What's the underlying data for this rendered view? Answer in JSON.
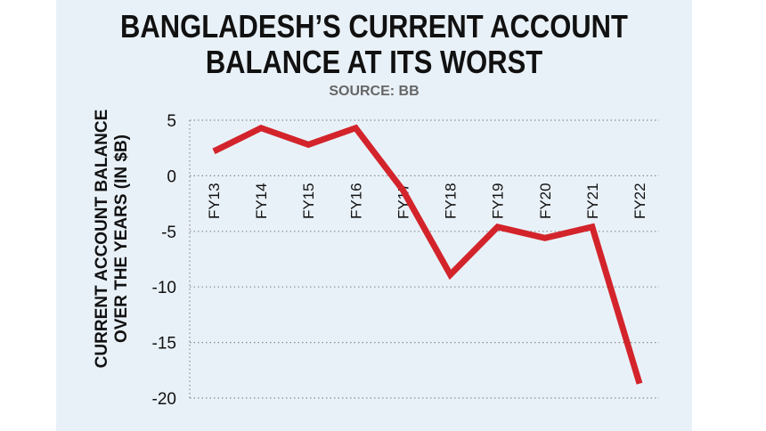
{
  "header": {
    "title_line1": "BANGLADESH’S CURRENT ACCOUNT",
    "title_line2": "BALANCE AT ITS WORST",
    "source": "SOURCE: BB"
  },
  "colors": {
    "background_panel": "#e9f1f8",
    "line": "#d3242b",
    "text": "#111111",
    "source_text": "#666666"
  },
  "chart_data": {
    "type": "line",
    "title": "BANGLADESH’S CURRENT ACCOUNT BALANCE AT ITS WORST",
    "subtitle": "SOURCE: BB",
    "ylabel": [
      "CURRENT ACCOUNT BALANCE",
      "OVER THE YEARS (IN $B)"
    ],
    "xlabel": "",
    "categories": [
      "FY13",
      "FY14",
      "FY15",
      "FY16",
      "FY17",
      "FY18",
      "FY19",
      "FY20",
      "FY21",
      "FY22"
    ],
    "series": [
      {
        "values": [
          2.2,
          4.3,
          2.8,
          4.3,
          -1.3,
          -8.9,
          -4.6,
          -5.6,
          -4.6,
          -18.7
        ]
      }
    ],
    "ylim": [
      -20,
      5
    ],
    "yticks": [
      5,
      0,
      -5,
      -10,
      -15,
      -20
    ],
    "ytick_labels": [
      "5",
      "0",
      "-5",
      "-10",
      "-15",
      "-20"
    ],
    "grid": "horizontal dotted",
    "legend": "none"
  }
}
